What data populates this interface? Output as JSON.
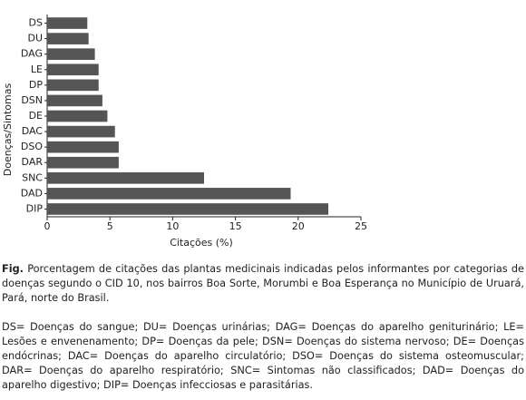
{
  "chart_data": {
    "type": "barh",
    "ylabel": "Doenças/Sintomas",
    "xlabel": "Citações (%)",
    "categories": [
      "DS",
      "DU",
      "DAG",
      "LE",
      "DP",
      "DSN",
      "DE",
      "DAC",
      "DSO",
      "DAR",
      "SNC",
      "DAD",
      "DIP"
    ],
    "values": [
      3.2,
      3.3,
      3.8,
      4.1,
      4.1,
      4.4,
      4.8,
      5.4,
      5.7,
      5.7,
      12.5,
      19.4,
      22.4
    ],
    "color": "#555555",
    "xlim": [
      0,
      25
    ],
    "xticks": [
      0,
      5,
      10,
      15,
      20,
      25
    ]
  },
  "figure_label": "Fig.",
  "caption": "Porcentagem de citações das plantas medicinais indicadas pelos informantes por categorias de doenças segundo o CID 10, nos bairros Boa Sorte, Morumbi e Boa Esperança no Município de Uruará, Pará, norte do Brasil.",
  "abbreviations": "DS= Doenças do sangue; DU= Doenças urinárias; DAG= Doenças do aparelho geniturinário; LE= Lesões e envenenamento; DP= Doenças da pele; DSN= Doenças do sistema nervoso; DE= Doenças endócrinas; DAC= Doenças do aparelho circulatório; DSO= Doenças do sistema osteomuscular; DAR= Doenças do aparelho respiratório; SNC= Sintomas não classificados; DAD= Doenças do aparelho digestivo; DIP= Doenças infecciosas e parasitárias."
}
